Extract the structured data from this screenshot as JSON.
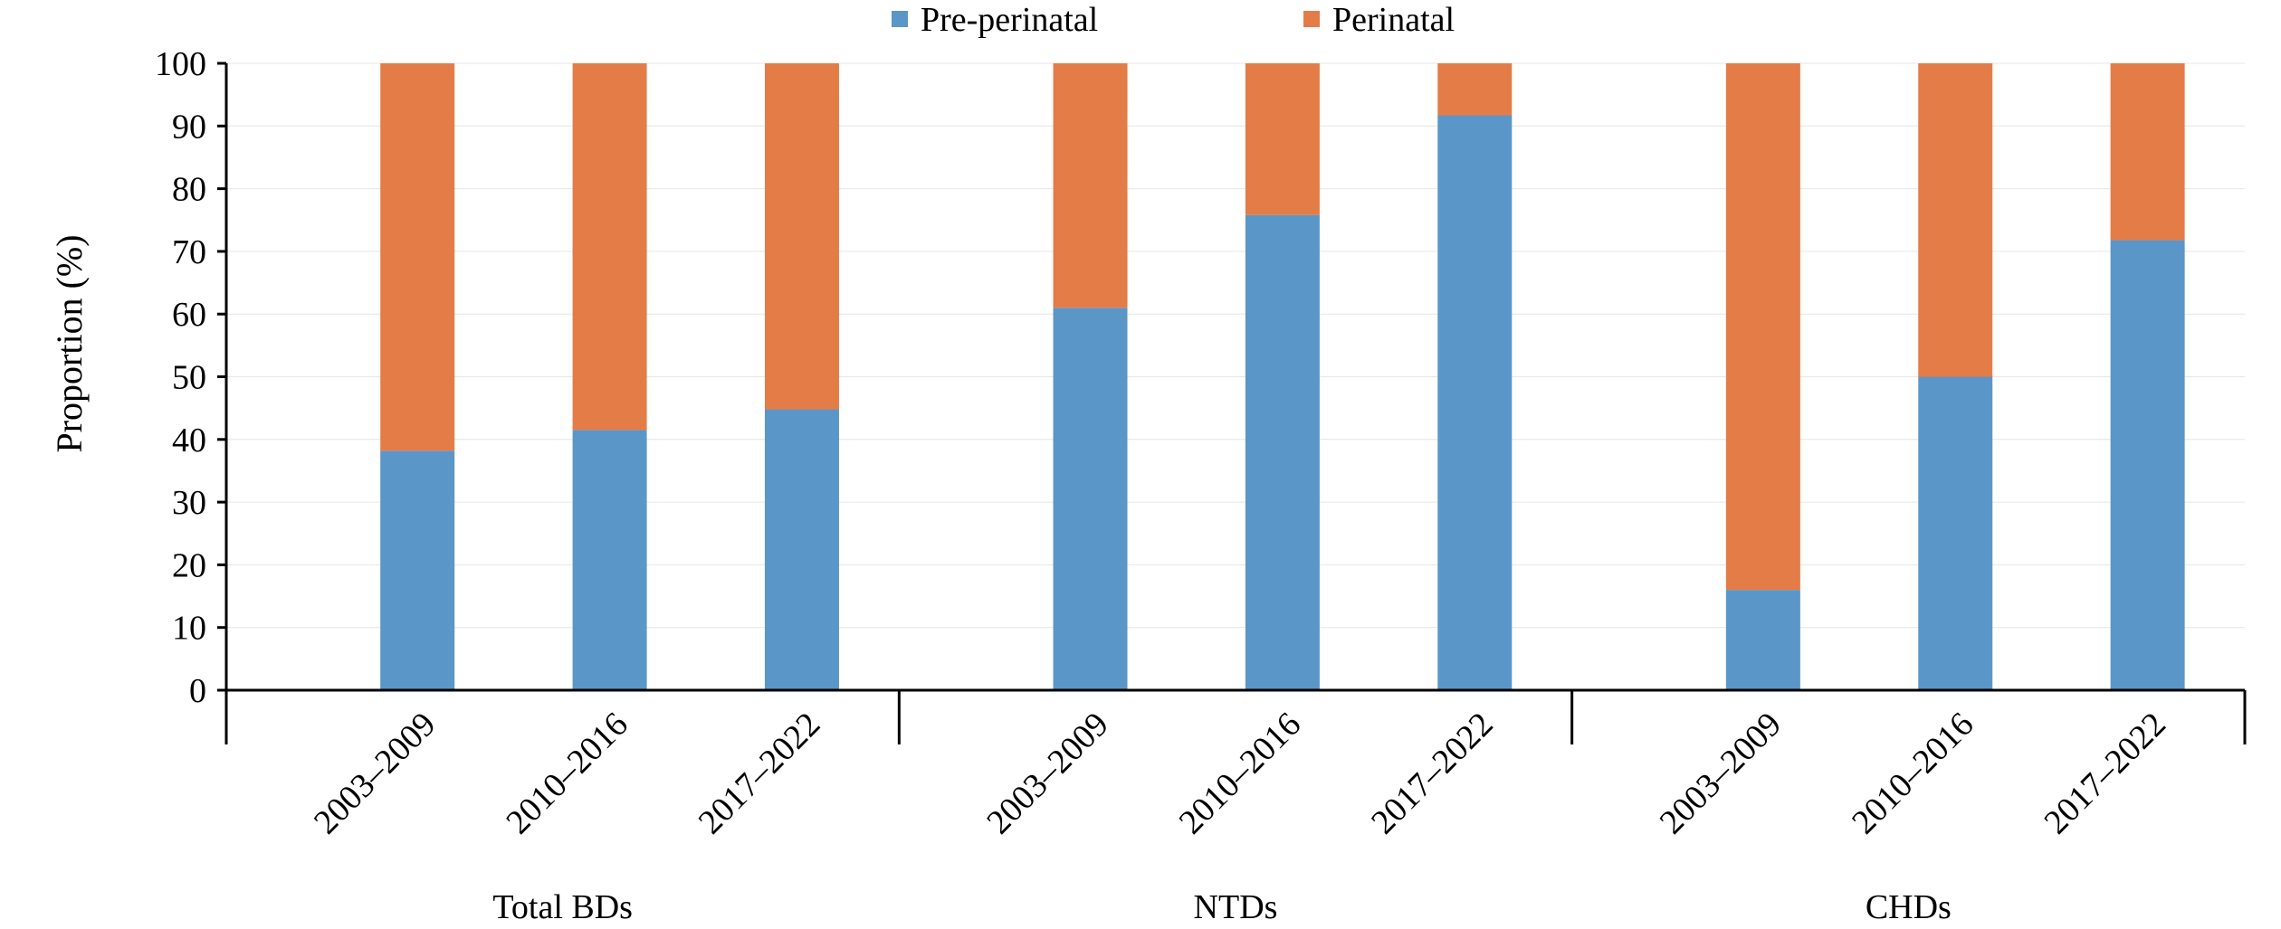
{
  "chart_data": {
    "type": "bar",
    "stacked": true,
    "ylabel": "Proportion (%)",
    "ylim": [
      0,
      100
    ],
    "yticks": [
      0,
      10,
      20,
      30,
      40,
      50,
      60,
      70,
      80,
      90,
      100
    ],
    "gridlines": true,
    "legend_position": "top",
    "groups": [
      {
        "label": "Total BDs",
        "categories": [
          "2003–2009",
          "2010–2016",
          "2017–2022"
        ]
      },
      {
        "label": "NTDs",
        "categories": [
          "2003–2009",
          "2010–2016",
          "2017–2022"
        ]
      },
      {
        "label": "CHDs",
        "categories": [
          "2003–2009",
          "2010–2016",
          "2017–2022"
        ]
      }
    ],
    "series": [
      {
        "name": "Pre-perinatal",
        "color": "#5b96c8",
        "values": [
          38.2,
          41.5,
          44.8,
          61.0,
          75.8,
          91.7,
          16.0,
          50.0,
          71.8
        ]
      },
      {
        "name": "Perinatal",
        "color": "#e47c48",
        "values": [
          61.8,
          58.5,
          55.2,
          39.0,
          24.2,
          8.3,
          84.0,
          50.0,
          28.2
        ]
      }
    ]
  }
}
